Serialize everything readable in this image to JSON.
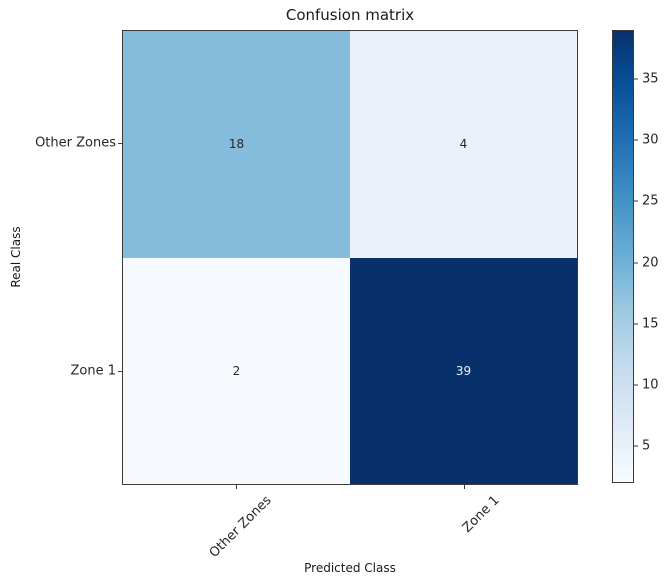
{
  "chart_data": {
    "type": "heatmap",
    "title": "Confusion matrix",
    "xlabel": "Predicted Class",
    "ylabel": "Real Class",
    "x_categories": [
      "Other Zones",
      "Zone 1"
    ],
    "y_categories": [
      "Other Zones",
      "Zone 1"
    ],
    "matrix": [
      [
        18,
        4
      ],
      [
        2,
        39
      ]
    ],
    "cells": [
      {
        "row": "Other Zones",
        "col": "Other Zones",
        "value": 18,
        "color": "#85bcdc",
        "text_color": "#262626"
      },
      {
        "row": "Other Zones",
        "col": "Zone 1",
        "value": 4,
        "color": "#eaf1f9",
        "text_color": "#262626"
      },
      {
        "row": "Zone 1",
        "col": "Other Zones",
        "value": 2,
        "color": "#f6f9fd",
        "text_color": "#262626"
      },
      {
        "row": "Zone 1",
        "col": "Zone 1",
        "value": 39,
        "color": "#08306b",
        "text_color": "#eef3fa"
      }
    ],
    "colorbar": {
      "vmin": 2,
      "vmax": 39,
      "ticks": [
        5,
        10,
        15,
        20,
        25,
        30,
        35
      ],
      "colormap": "Blues",
      "gradient_stops": [
        "#f7fbff",
        "#deebf7",
        "#c6dbef",
        "#9ecae1",
        "#6baed6",
        "#4292c6",
        "#2171b5",
        "#08519c",
        "#08306b"
      ]
    },
    "legend": "colorbar-right",
    "grid": false
  }
}
